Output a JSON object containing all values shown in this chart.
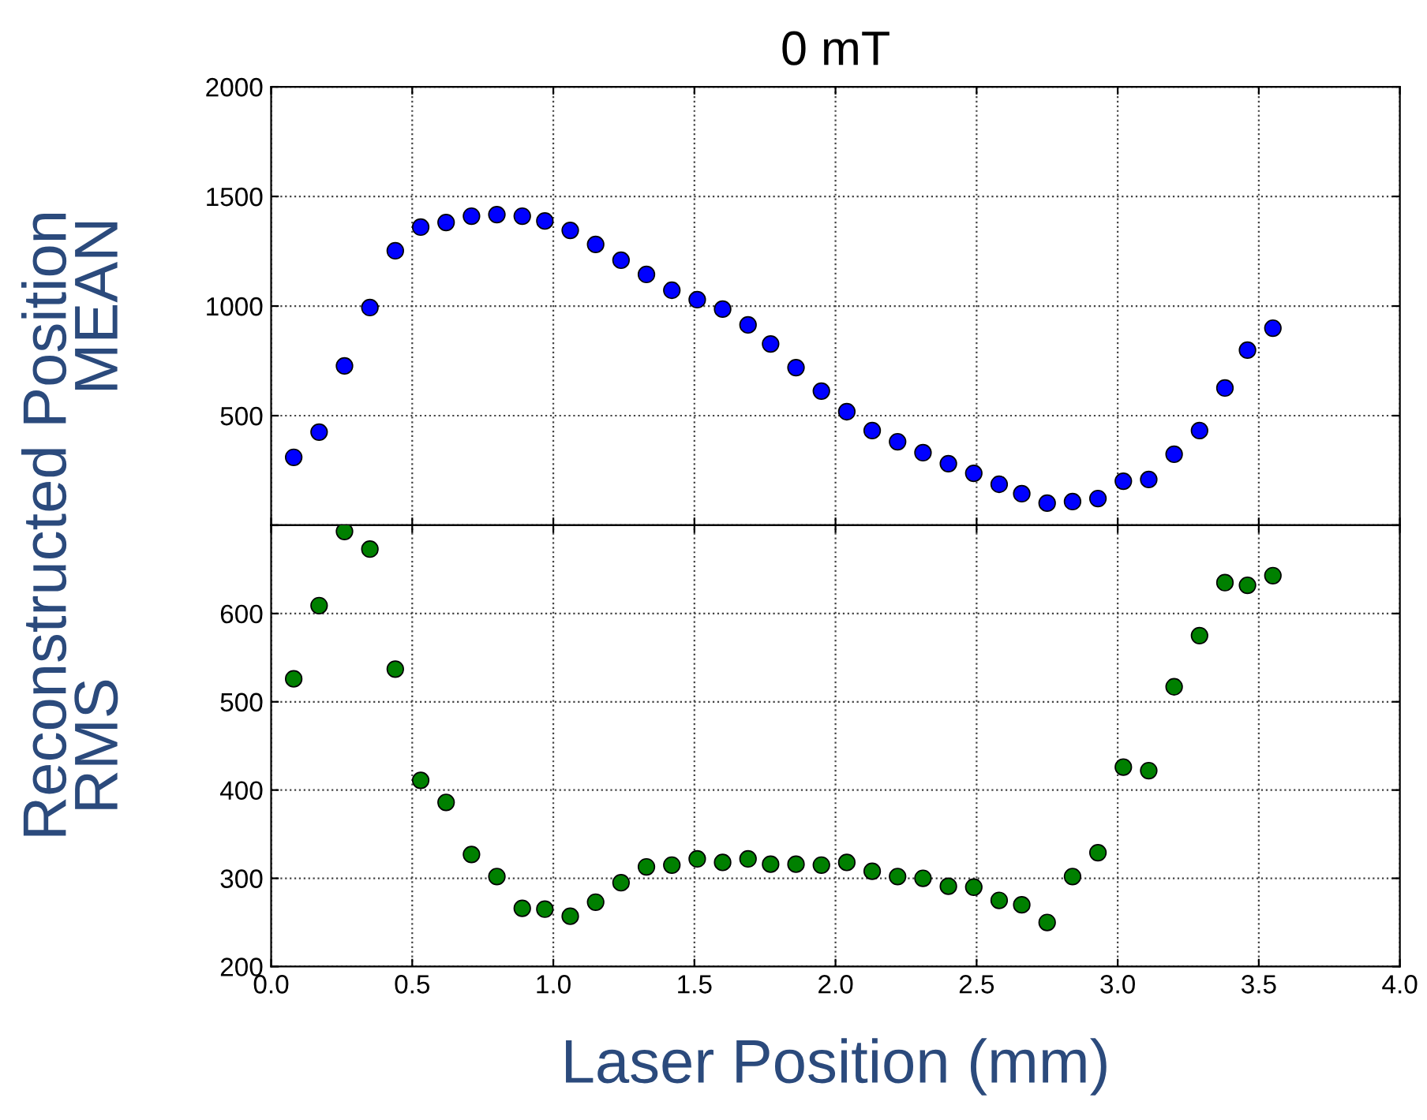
{
  "chart_data": [
    {
      "type": "scatter",
      "title": "0 mT",
      "ylabel": "MEAN",
      "annotations": [
        "Reconstructed Position"
      ],
      "xlim": [
        0,
        4
      ],
      "xticks": [
        0,
        0.5,
        1,
        1.5,
        2,
        2.5,
        3,
        3.5,
        4
      ],
      "ylim": [
        0,
        2000
      ],
      "yticks": [
        {
          "value": 0,
          "label": null
        },
        500,
        1000,
        1500,
        2000
      ],
      "tick_labels": "y",
      "grid": true,
      "marker": "circle",
      "x": [
        0.08,
        0.17,
        0.26,
        0.35,
        0.44,
        0.53,
        0.62,
        0.71,
        0.8,
        0.89,
        0.97,
        1.06,
        1.15,
        1.24,
        1.33,
        1.42,
        1.51,
        1.6,
        1.69,
        1.77,
        1.86,
        1.95,
        2.04,
        2.13,
        2.22,
        2.31,
        2.4,
        2.49,
        2.58,
        2.66,
        2.75,
        2.84,
        2.93,
        3.02,
        3.11,
        3.2,
        3.29,
        3.38,
        3.46,
        3.55
      ],
      "series": [
        {
          "color": "#0000ff",
          "values": [
            310,
            425,
            727,
            993,
            1252,
            1360,
            1381,
            1410,
            1417,
            1410,
            1388,
            1345,
            1281,
            1209,
            1144,
            1072,
            1029,
            986,
            914,
            827,
            719,
            612,
            518,
            432,
            381,
            331,
            281,
            237,
            187,
            144,
            101,
            108,
            122,
            201,
            209,
            324,
            432,
            626,
            799,
            899
          ]
        }
      ]
    },
    {
      "type": "scatter",
      "ylabel": "RMS",
      "xlabel": "Laser Position (mm)",
      "xlim": [
        0,
        4
      ],
      "xticks": [
        {
          "value": 0,
          "label": "0.0"
        },
        0.5,
        {
          "value": 1,
          "label": "1.0"
        },
        1.5,
        {
          "value": 2,
          "label": "2.0"
        },
        2.5,
        {
          "value": 3,
          "label": "3.0"
        },
        3.5,
        {
          "value": 4,
          "label": "4.0"
        }
      ],
      "ylim": [
        200,
        700
      ],
      "yticks": [
        200,
        300,
        400,
        500,
        600,
        {
          "value": 700,
          "label": null
        }
      ],
      "grid": true,
      "marker": "circle",
      "x": [
        0.08,
        0.17,
        0.26,
        0.35,
        0.44,
        0.53,
        0.62,
        0.71,
        0.8,
        0.89,
        0.97,
        1.06,
        1.15,
        1.24,
        1.33,
        1.42,
        1.51,
        1.6,
        1.69,
        1.77,
        1.86,
        1.95,
        2.04,
        2.13,
        2.22,
        2.31,
        2.4,
        2.49,
        2.58,
        2.66,
        2.75,
        2.84,
        2.93,
        3.02,
        3.11,
        3.2,
        3.29,
        3.38,
        3.46,
        3.55
      ],
      "series": [
        {
          "color": "#008000",
          "values": [
            526,
            609,
            693,
            673,
            537,
            411,
            386,
            327,
            302,
            266,
            265,
            257,
            273,
            295,
            313,
            315,
            322,
            318,
            322,
            316,
            316,
            315,
            318,
            308,
            302,
            300,
            291,
            290,
            275,
            270,
            250,
            302,
            329,
            426,
            422,
            517,
            575,
            635,
            632,
            643
          ]
        }
      ]
    }
  ]
}
